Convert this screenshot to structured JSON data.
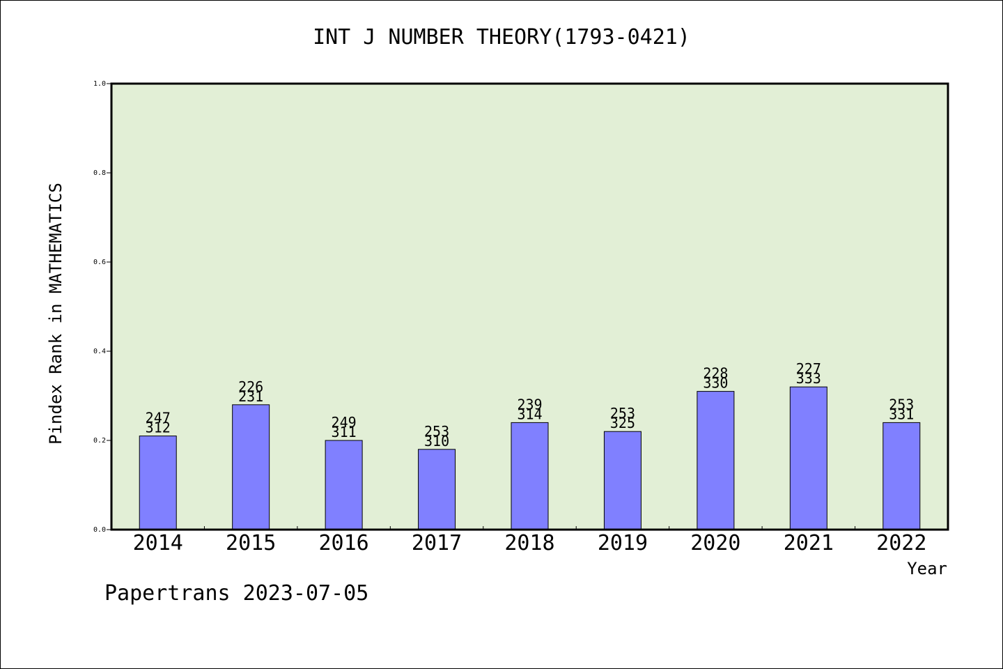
{
  "chart_data": {
    "type": "bar",
    "title": "INT J NUMBER THEORY(1793-0421)",
    "ylabel": "Pindex Rank in MATHEMATICS",
    "xlabel": "Year",
    "categories": [
      "2014",
      "2015",
      "2016",
      "2017",
      "2018",
      "2019",
      "2020",
      "2021",
      "2022"
    ],
    "values": [
      0.21,
      0.28,
      0.2,
      0.18,
      0.24,
      0.22,
      0.31,
      0.32,
      0.24
    ],
    "labels_top": [
      "247",
      "226",
      "249",
      "253",
      "239",
      "253",
      "228",
      "227",
      "253"
    ],
    "labels_bottom": [
      "312",
      "231",
      "311",
      "310",
      "314",
      "325",
      "330",
      "333",
      "331"
    ],
    "ylim": [
      0,
      1.0
    ],
    "yticks": [
      "0.0",
      "0.2",
      "0.4",
      "0.6",
      "0.8",
      "1.0"
    ],
    "grid": false,
    "plot_background": "#e2efd6",
    "bar_color": "#8080ff"
  },
  "footer": "Papertrans 2023-07-05"
}
